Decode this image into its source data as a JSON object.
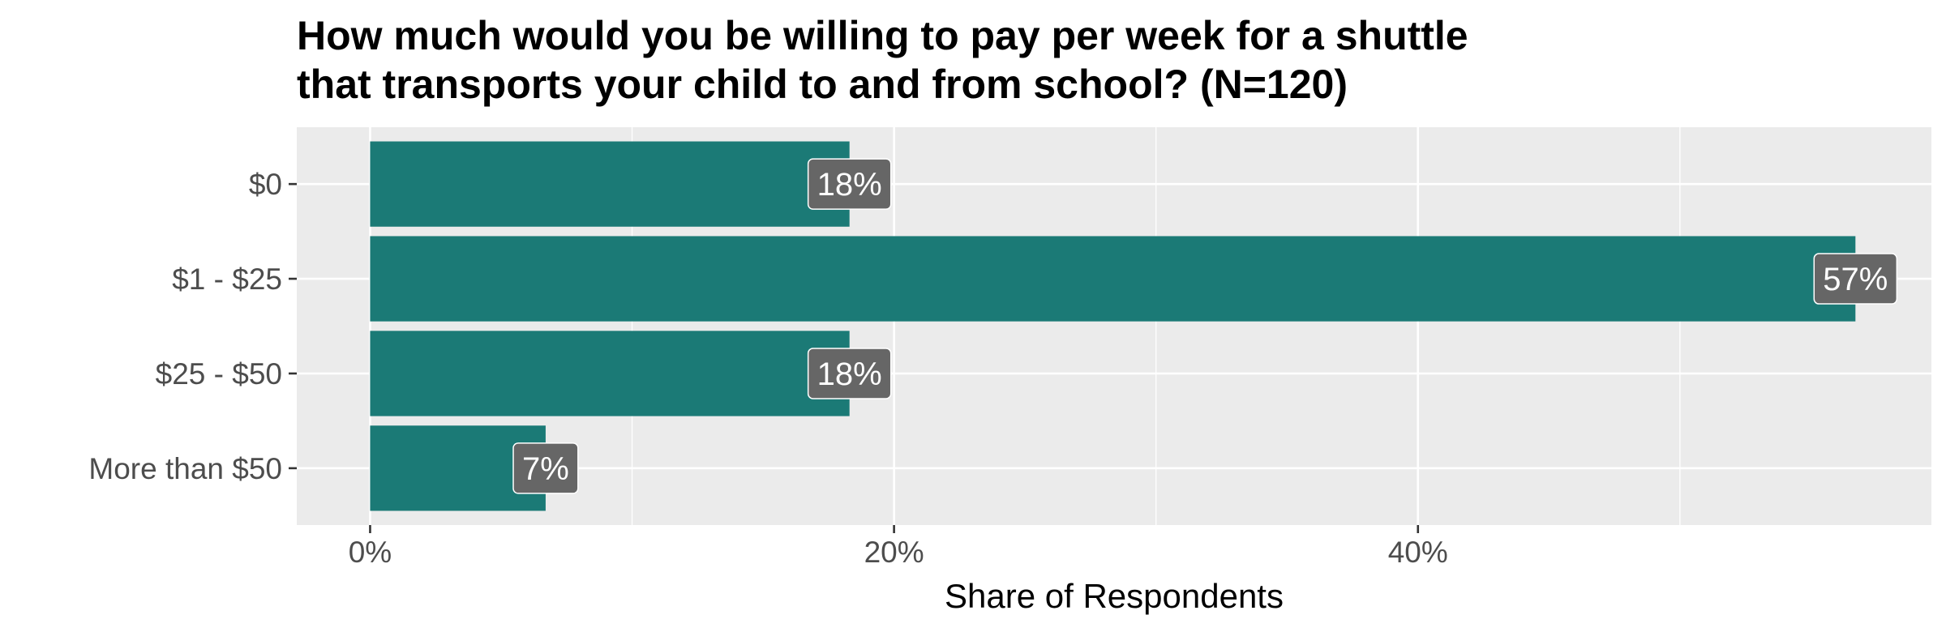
{
  "chart_data": {
    "type": "bar",
    "orientation": "horizontal",
    "title_lines": [
      "How much would you be willing to pay per week for a shuttle",
      "that transports your child to and from school? (N=120)"
    ],
    "categories": [
      "$0",
      "$1 - $25",
      "$25 - $50",
      "More than $50"
    ],
    "values": [
      18.3,
      56.7,
      18.3,
      6.7
    ],
    "data_labels": [
      "18%",
      "57%",
      "18%",
      "7%"
    ],
    "xlabel": "Share of Respondents",
    "ylabel": "",
    "xlim": [
      -2.8,
      59.6
    ],
    "x_ticks": [
      0,
      20,
      40
    ],
    "x_tick_labels": [
      "0%",
      "20%",
      "40%"
    ],
    "grid": true,
    "legend": "none",
    "colors": {
      "bar": "#1b7a76",
      "panel": "#ebebeb",
      "grid": "#ffffff",
      "label_box": "#666666",
      "label_text": "#ffffff",
      "axis_text": "#4d4d4d",
      "axis_title": "#000000"
    }
  }
}
